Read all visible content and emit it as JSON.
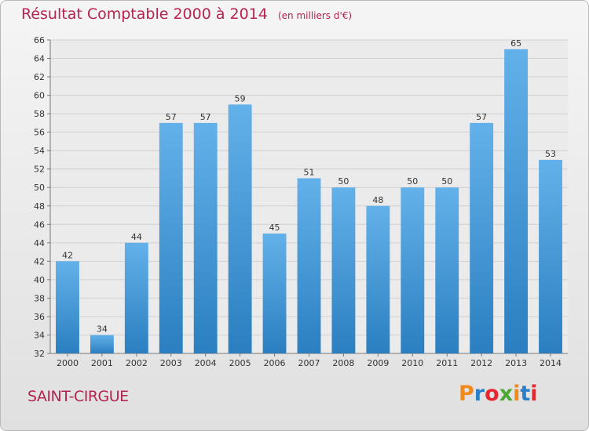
{
  "title": "Résultat Comptable 2000 à 2014",
  "unit_note": "(en milliers d'€)",
  "place": "SAINT-CIRGUE",
  "logo": {
    "letters": [
      "P",
      "r",
      "o",
      "x",
      "i",
      "t",
      "i"
    ],
    "colors": [
      "#f08a1c",
      "#2a7fc9",
      "#e8262f",
      "#4aa832",
      "#f08a1c",
      "#2a7fc9",
      "#e8262f"
    ],
    "text": "Proxiti"
  },
  "colors": {
    "bar_top": "#63b1ea",
    "bar_bottom": "#2b7fc0",
    "title": "#b5244e"
  },
  "chart_data": {
    "type": "bar",
    "title": "Résultat Comptable 2000 à 2014",
    "subtitle": "(en milliers d'€)",
    "categories": [
      "2000",
      "2001",
      "2002",
      "2003",
      "2004",
      "2005",
      "2006",
      "2007",
      "2008",
      "2009",
      "2010",
      "2011",
      "2012",
      "2013",
      "2014"
    ],
    "values": [
      42,
      34,
      44,
      57,
      57,
      59,
      45,
      51,
      50,
      48,
      50,
      50,
      57,
      65,
      53
    ],
    "ylim": [
      32,
      66
    ],
    "yticks": [
      32,
      34,
      36,
      38,
      40,
      42,
      44,
      46,
      48,
      50,
      52,
      54,
      56,
      58,
      60,
      62,
      64,
      66
    ],
    "grid": true,
    "legend": "none"
  }
}
